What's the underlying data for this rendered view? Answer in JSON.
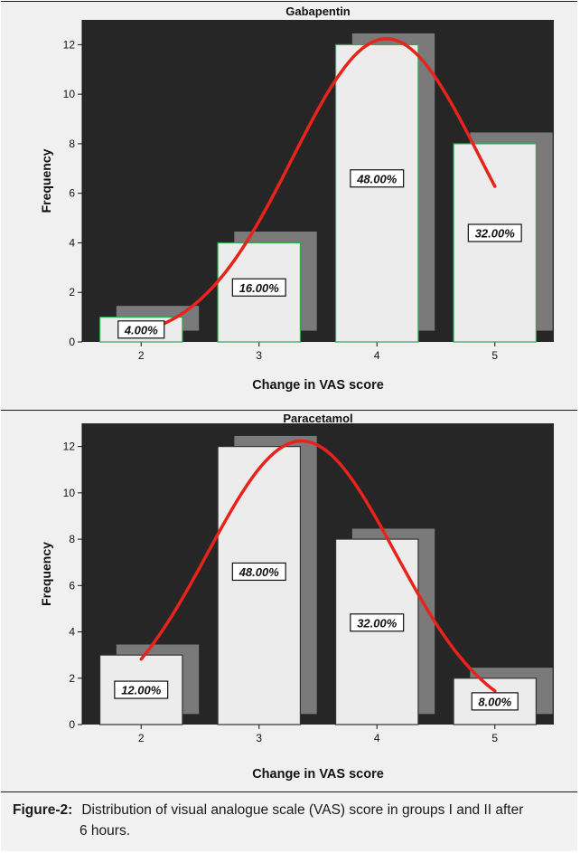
{
  "chart_data": [
    {
      "type": "bar",
      "title": "Gabapentin",
      "xlabel": "Change in VAS score",
      "ylabel": "Frequency",
      "categories": [
        "2",
        "3",
        "4",
        "5"
      ],
      "values": [
        1,
        4,
        12,
        8
      ],
      "data_labels": [
        "4.00%",
        "16.00%",
        "48.00%",
        "32.00%"
      ],
      "ylim": [
        0,
        13
      ],
      "yticks": [
        "0",
        "2",
        "4",
        "6",
        "8",
        "10",
        "12"
      ],
      "overlay": "normal-curve",
      "grid": false
    },
    {
      "type": "bar",
      "title": "Paracetamol",
      "xlabel": "Change in VAS score",
      "ylabel": "Frequency",
      "categories": [
        "2",
        "3",
        "4",
        "5"
      ],
      "values": [
        3,
        12,
        8,
        2
      ],
      "data_labels": [
        "12.00%",
        "48.00%",
        "32.00%",
        "8.00%"
      ],
      "ylim": [
        0,
        13
      ],
      "yticks": [
        "0",
        "2",
        "4",
        "6",
        "8",
        "10",
        "12"
      ],
      "overlay": "normal-curve",
      "grid": false
    }
  ],
  "colors": {
    "plot_background": "#262626",
    "bar_fill": "#ececec",
    "bar_shadow": "#7a7a7a",
    "curve": "#e8231c",
    "panel_background": "#f0f0f0",
    "bar_outline_top": "#2fa84f",
    "bar_outline_bottom": "#333333"
  },
  "caption": {
    "label": "Figure-2:",
    "line1": "Distribution of visual analogue scale (VAS) score in groups I and II after",
    "line2": "6 hours."
  }
}
